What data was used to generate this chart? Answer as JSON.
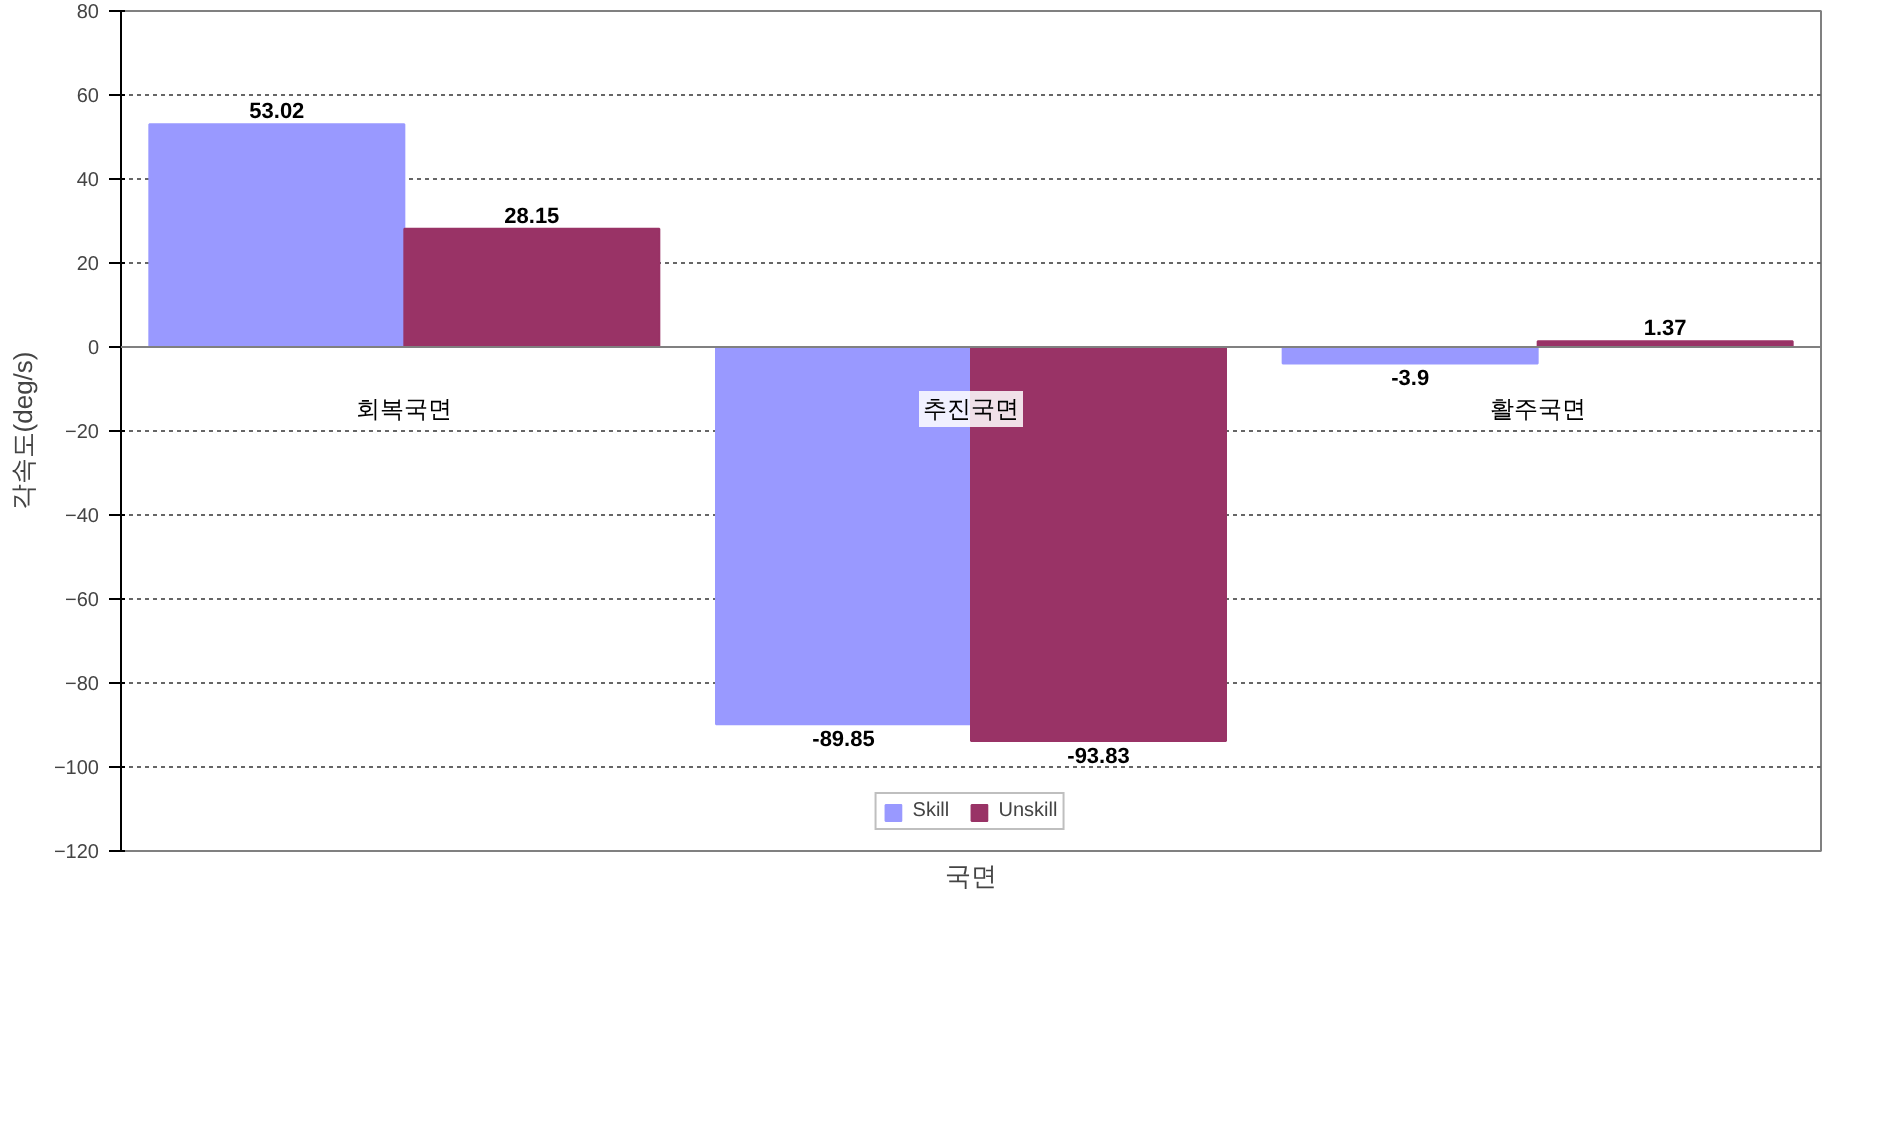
{
  "chart_data": {
    "type": "bar",
    "xlabel": "국면",
    "ylabel": "각속도(deg/s)",
    "categories": [
      "회복국면",
      "추진국면",
      "활주국면"
    ],
    "series": [
      {
        "name": "Skill",
        "color": "#9999ff",
        "values": [
          53.02,
          -89.85,
          -3.9
        ]
      },
      {
        "name": "Unskill",
        "color": "#993366",
        "values": [
          28.15,
          -93.83,
          1.37
        ]
      }
    ],
    "ylim": [
      -120,
      80
    ],
    "yticks": [
      -120,
      -100,
      -80,
      -60,
      -40,
      -20,
      0,
      20,
      40,
      60,
      80
    ],
    "grid": "y",
    "legend": "bottom",
    "data_labels": true
  }
}
